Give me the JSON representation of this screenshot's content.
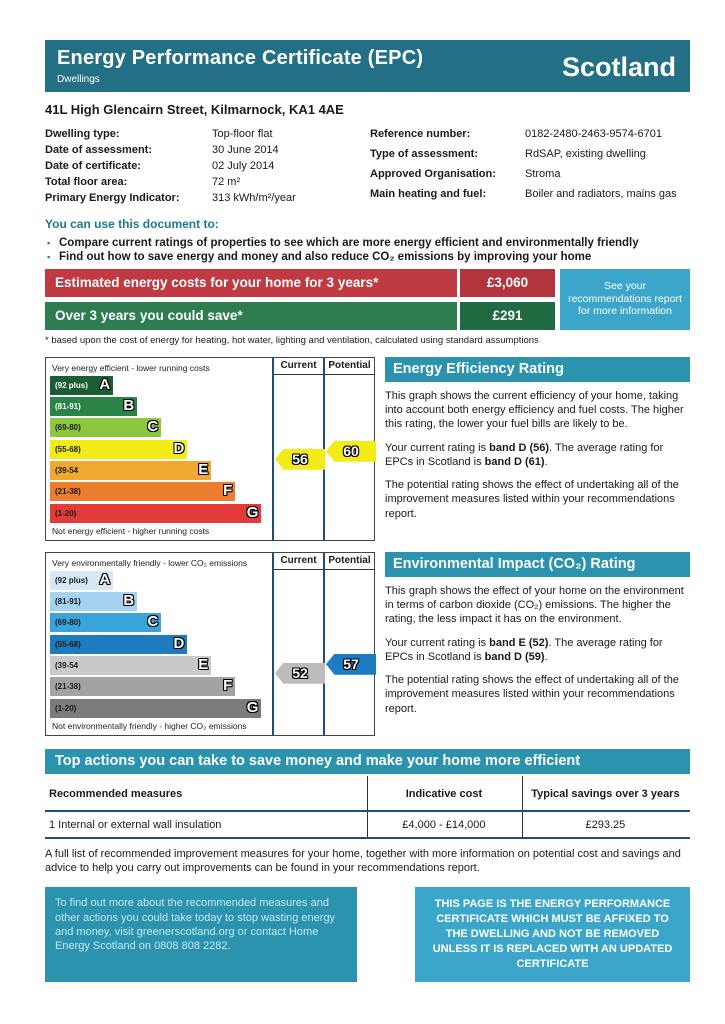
{
  "header": {
    "title": "Energy Performance Certificate (EPC)",
    "subtitle": "Dwellings",
    "region": "Scotland",
    "band_color": "#236f85"
  },
  "address": "41L High Glencairn Street, Kilmarnock, KA1 4AE",
  "details": {
    "left": [
      {
        "label": "Dwelling type:",
        "value": "Top-floor flat"
      },
      {
        "label": "Date of assessment:",
        "value": "30 June 2014"
      },
      {
        "label": "Date of certificate:",
        "value": "02 July 2014"
      },
      {
        "label": "Total floor area:",
        "value": "72 m²"
      },
      {
        "label": "Primary Energy Indicator:",
        "value": "313 kWh/m²/year"
      }
    ],
    "right": [
      {
        "label": "Reference number:",
        "value": "0182-2480-2463-9574-6701"
      },
      {
        "label": "Type of assessment:",
        "value": "RdSAP, existing dwelling"
      },
      {
        "label": "Approved Organisation:",
        "value": "Stroma"
      },
      {
        "label": "Main heating and fuel:",
        "value": "Boiler and radiators, mains gas"
      }
    ]
  },
  "usage": {
    "title": "You can use this document to:",
    "bullets": [
      "Compare current ratings of properties to see which are more energy efficient and environmentally friendly",
      "Find out how to save energy and money and also reduce CO₂ emissions by improving your home"
    ]
  },
  "costs": {
    "rows": [
      {
        "label": "Estimated energy costs for your home for 3 years*",
        "value": "£3,060",
        "label_bg": "#bf3a43",
        "value_bg": "#b2343c"
      },
      {
        "label": "Over 3 years you could save*",
        "value": "£291",
        "label_bg": "#2d7d50",
        "value_bg": "#1f6a41"
      }
    ],
    "info_box": "See your recommendations report for more information",
    "footnote": "* based upon the cost of energy for heating, hot water, lighting and ventilation, calculated using standard assumptions"
  },
  "eer": {
    "title": "Energy Efficiency Rating",
    "top_caption": "Very energy efficient - lower running costs",
    "bottom_caption": "Not energy efficient - higher running costs",
    "current_label": "Current",
    "potential_label": "Potential",
    "bands": [
      {
        "letter": "A",
        "range": "(92 plus)",
        "color": "#1a5c33",
        "range_color": "#ffffff",
        "width_pct": 29
      },
      {
        "letter": "B",
        "range": "(81-91)",
        "color": "#2b8447",
        "range_color": "#ffffff",
        "width_pct": 40
      },
      {
        "letter": "C",
        "range": "(69-80)",
        "color": "#8dc63f",
        "range_color": "#1a1a1a",
        "width_pct": 51
      },
      {
        "letter": "D",
        "range": "(55-68)",
        "color": "#f2eb16",
        "range_color": "#1a1a1a",
        "width_pct": 63
      },
      {
        "letter": "E",
        "range": "(39-54",
        "color": "#efa832",
        "range_color": "#1a1a1a",
        "width_pct": 74
      },
      {
        "letter": "F",
        "range": "(21-38)",
        "color": "#ed7d2e",
        "range_color": "#1a1a1a",
        "width_pct": 85
      },
      {
        "letter": "G",
        "range": "(1-20)",
        "color": "#e23c38",
        "range_color": "#1a1a1a",
        "width_pct": 97
      }
    ],
    "current": {
      "value": "56",
      "color": "#f2eb16"
    },
    "potential": {
      "value": "60",
      "color": "#f2eb16"
    },
    "p1": "This graph shows the current efficiency of your home, taking into account both energy efficiency and fuel costs. The higher this rating, the lower your fuel bills are likely to be.",
    "p2_pre": "Your current rating is ",
    "p2_b1": "band D (56)",
    "p2_mid": ". The average rating for EPCs in Scotland is ",
    "p2_b2": "band D (61)",
    "p2_post": ".",
    "p3": "The potential rating shows the effect of undertaking all of the improvement measures listed within your recommendations report."
  },
  "eir": {
    "title": "Environmental Impact (CO₂) Rating",
    "top_caption": "Very environmentally friendly - lower CO₂ emissions",
    "bottom_caption": "Not environmentally friendly - higher CO₂ emissions",
    "current_label": "Current",
    "potential_label": "Potential",
    "bands": [
      {
        "letter": "A",
        "range": "(92 plus)",
        "color": "#d5e8f6",
        "range_color": "#1a1a1a",
        "width_pct": 29
      },
      {
        "letter": "B",
        "range": "(81-91)",
        "color": "#a5d2f0",
        "range_color": "#1a1a1a",
        "width_pct": 40
      },
      {
        "letter": "C",
        "range": "(69-80)",
        "color": "#39a3dc",
        "range_color": "#1a1a1a",
        "width_pct": 51
      },
      {
        "letter": "D",
        "range": "(55-68)",
        "color": "#1d7cc0",
        "range_color": "#1a1a1a",
        "width_pct": 63
      },
      {
        "letter": "E",
        "range": "(39-54",
        "color": "#c9c9c9",
        "range_color": "#1a1a1a",
        "width_pct": 74
      },
      {
        "letter": "F",
        "range": "(21-38)",
        "color": "#a3a3a3",
        "range_color": "#1a1a1a",
        "width_pct": 85
      },
      {
        "letter": "G",
        "range": "(1-20)",
        "color": "#7b7b7b",
        "range_color": "#1a1a1a",
        "width_pct": 97
      }
    ],
    "current": {
      "value": "52",
      "color": "#bcbcbc"
    },
    "potential": {
      "value": "57",
      "color": "#1d7cc0"
    },
    "p1": "This graph shows the effect of your home on the environment in terms of carbon dioxide (CO₂) emissions. The higher the rating, the less impact it has on the environment.",
    "p2_pre": "Your current rating is ",
    "p2_b1": "band E (52)",
    "p2_mid": ". The average rating for EPCs in Scotland is ",
    "p2_b2": "band D (59)",
    "p2_post": ".",
    "p3": "The potential rating shows the effect of undertaking all of the improvement measures listed within your recommendations report."
  },
  "actions": {
    "header": "Top actions you can take to save money and make your home more efficient",
    "columns": [
      "Recommended measures",
      "Indicative cost",
      "Typical savings over 3 years"
    ],
    "rows": [
      {
        "measure": "1 Internal or external wall insulation",
        "cost": "£4,000  -  £14,000",
        "savings": "£293.25"
      }
    ],
    "note": "A full list of recommended improvement measures for your home, together with more information on potential cost and savings and advice to help you carry out improvements can be found in your recommendations report."
  },
  "footer": {
    "left_box": "To find out more about the recommended measures and other actions you could take today to stop wasting energy and money, visit greenerscotland.org or contact Home Energy Scotland on 0808 808 2282.",
    "right_box": "THIS PAGE IS THE ENERGY PERFORMANCE CERTIFICATE WHICH MUST BE AFFIXED TO THE DWELLING AND NOT BE REMOVED UNLESS IT IS REPLACED WITH AN UPDATED CERTIFICATE"
  },
  "theme": {
    "teal_dark": "#236f85",
    "teal_section": "#2b93ae",
    "blue_light": "#3ba6c9",
    "rule_navy": "#1f4e79"
  }
}
